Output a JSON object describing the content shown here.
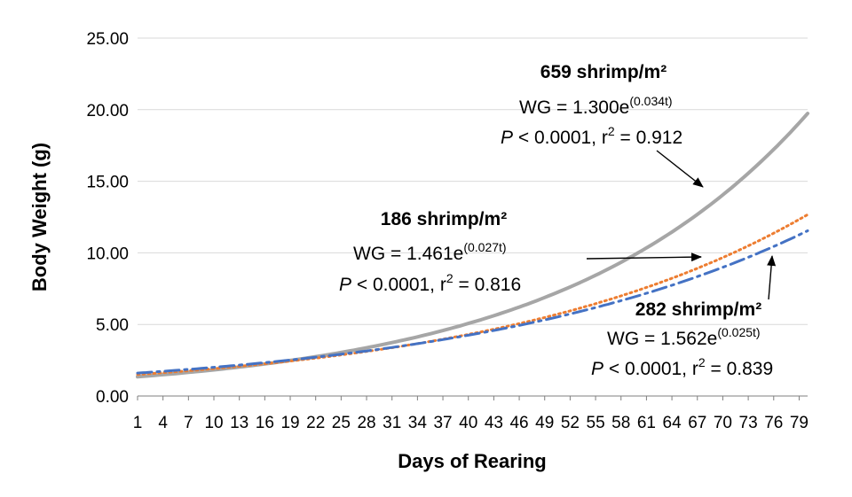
{
  "chart_data": {
    "type": "line",
    "title": "",
    "xlabel": "Days of Rearing",
    "ylabel": "Body Weight (g)",
    "ylim": [
      0,
      25
    ],
    "yticks": [
      "0.00",
      "5.00",
      "10.00",
      "15.00",
      "20.00",
      "25.00"
    ],
    "xlim": [
      1,
      80
    ],
    "xticks": [
      "1",
      "4",
      "7",
      "10",
      "13",
      "16",
      "19",
      "22",
      "25",
      "28",
      "31",
      "34",
      "37",
      "40",
      "43",
      "46",
      "49",
      "52",
      "55",
      "58",
      "61",
      "64",
      "67",
      "70",
      "73",
      "76",
      "79"
    ],
    "grid": true,
    "series": [
      {
        "name": "659 shrimp/m²",
        "model": {
          "a": 1.3,
          "b": 0.034
        },
        "style": "solid",
        "color": "#a6a6a6",
        "label": "659 shrimp/m²",
        "eq_prefix": "WG = 1.300e",
        "eq_exp": "(0.034t)",
        "stat_p": "P",
        "stat_rest": " < 0.0001, r",
        "stat_sup": "2",
        "stat_val": " = 0.912"
      },
      {
        "name": "186 shrimp/m²",
        "model": {
          "a": 1.461,
          "b": 0.027
        },
        "style": "dotted",
        "color": "#ed7d31",
        "label": "186 shrimp/m²",
        "eq_prefix": "WG = 1.461e",
        "eq_exp": "(0.027t)",
        "stat_p": "P",
        "stat_rest": " < 0.0001, r",
        "stat_sup": "2",
        "stat_val": " = 0.816"
      },
      {
        "name": "282 shrimp/m²",
        "model": {
          "a": 1.562,
          "b": 0.025
        },
        "style": "dashdot",
        "color": "#4472c4",
        "label": "282 shrimp/m²",
        "eq_prefix": "WG = 1.562e",
        "eq_exp": "(0.025t)",
        "stat_p": "P",
        "stat_rest": " < 0.0001, r",
        "stat_sup": "2",
        "stat_val": " = 0.839"
      }
    ]
  }
}
